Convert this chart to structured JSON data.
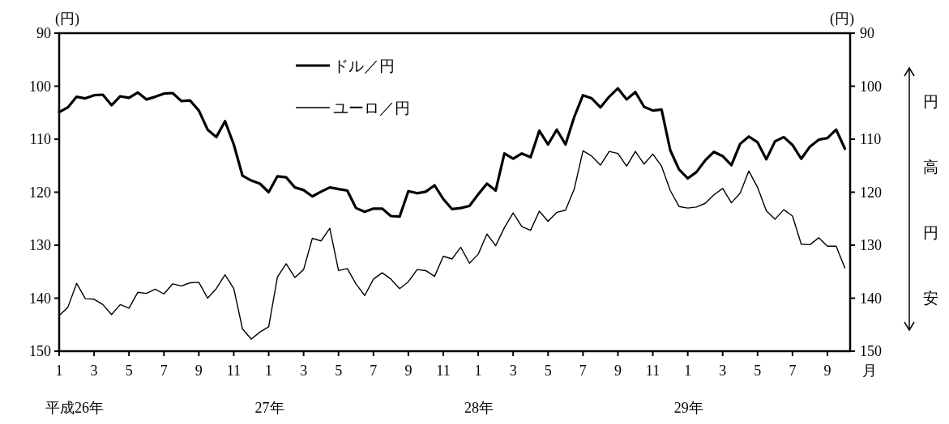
{
  "chart_data": {
    "type": "line",
    "ylabel": "(円)",
    "y2label": "(円)",
    "xlabel": "月",
    "categories": [
      "1",
      null,
      null,
      null,
      "3",
      null,
      null,
      null,
      "5",
      null,
      null,
      null,
      "7",
      null,
      null,
      null,
      "9",
      null,
      null,
      null,
      "11",
      null,
      null,
      null,
      "1",
      null,
      null,
      null,
      "3",
      null,
      null,
      null,
      "5",
      null,
      null,
      null,
      "7",
      null,
      null,
      null,
      "9",
      null,
      null,
      null,
      "11",
      null,
      null,
      null,
      "1",
      null,
      null,
      null,
      "3",
      null,
      null,
      null,
      "5",
      null,
      null,
      null,
      "7",
      null,
      null,
      null,
      "9",
      null,
      null,
      null,
      "11",
      null,
      null,
      null,
      "1",
      null,
      null,
      null,
      "3",
      null,
      null,
      null,
      "5",
      null,
      null,
      null,
      "7",
      null,
      null,
      null,
      "9",
      null,
      null
    ],
    "ylim": [
      150,
      90
    ],
    "y2lim": [
      150,
      90
    ],
    "yticks": [
      90,
      100,
      110,
      120,
      130,
      140,
      150
    ],
    "y2ticks": [
      90,
      100,
      110,
      120,
      130,
      140,
      150
    ],
    "legend": "top left",
    "grid": false,
    "marker": "none",
    "line_style": "solid",
    "annotations": [
      "平成26年",
      "27年",
      "28年",
      "29年",
      "円",
      "高",
      "円",
      "安"
    ],
    "series": [
      {
        "name": "ドル／円",
        "color": "#000000",
        "values": [
          104.9,
          104.0,
          102.0,
          102.3,
          101.7,
          101.6,
          103.6,
          101.9,
          102.2,
          101.2,
          102.5,
          102.0,
          101.4,
          101.3,
          102.8,
          102.7,
          104.6,
          108.2,
          109.6,
          106.6,
          111.0,
          116.9,
          117.8,
          118.4,
          120.0,
          117.0,
          117.2,
          119.1,
          119.6,
          120.8,
          119.9,
          119.1,
          119.4,
          119.7,
          123.0,
          123.7,
          123.1,
          123.1,
          124.5,
          124.6,
          119.8,
          120.2,
          119.9,
          118.7,
          121.3,
          123.2,
          123.0,
          122.6,
          120.4,
          118.4,
          119.7,
          112.7,
          113.7,
          112.7,
          113.4,
          108.4,
          111.0,
          108.2,
          111.0,
          105.8,
          101.7,
          102.3,
          104.0,
          102.0,
          100.4,
          102.5,
          101.1,
          103.9,
          104.6,
          104.4,
          112.1,
          115.7,
          117.4,
          116.2,
          114.0,
          112.4,
          113.2,
          114.9,
          110.9,
          109.5,
          110.6,
          113.8,
          110.4,
          109.6,
          111.1,
          113.7,
          111.4,
          110.1,
          109.8,
          108.2,
          111.8
        ]
      },
      {
        "name": "ユーロ／円",
        "color": "#000000",
        "values": [
          143.3,
          141.7,
          137.2,
          140.1,
          140.2,
          141.2,
          143.1,
          141.2,
          141.9,
          138.9,
          139.1,
          138.3,
          139.2,
          137.3,
          137.7,
          137.1,
          137.0,
          140.0,
          138.2,
          135.6,
          138.2,
          145.8,
          147.7,
          146.4,
          145.4,
          136.0,
          133.5,
          136.1,
          134.6,
          128.7,
          129.2,
          126.8,
          134.8,
          134.4,
          137.3,
          139.5,
          136.4,
          135.2,
          136.4,
          138.2,
          136.9,
          134.6,
          134.8,
          135.9,
          132.1,
          132.6,
          130.4,
          133.4,
          131.7,
          127.9,
          130.1,
          126.7,
          123.9,
          126.5,
          127.2,
          123.6,
          125.5,
          123.8,
          123.4,
          119.4,
          112.2,
          113.2,
          114.9,
          112.3,
          112.7,
          115.1,
          112.3,
          114.7,
          112.8,
          115.1,
          119.7,
          122.7,
          123.0,
          122.8,
          122.1,
          120.5,
          119.3,
          122.0,
          120.2,
          116.0,
          119.1,
          123.5,
          125.1,
          123.3,
          124.5,
          129.8,
          129.9,
          128.6,
          130.2,
          130.2,
          134.3
        ]
      }
    ]
  }
}
